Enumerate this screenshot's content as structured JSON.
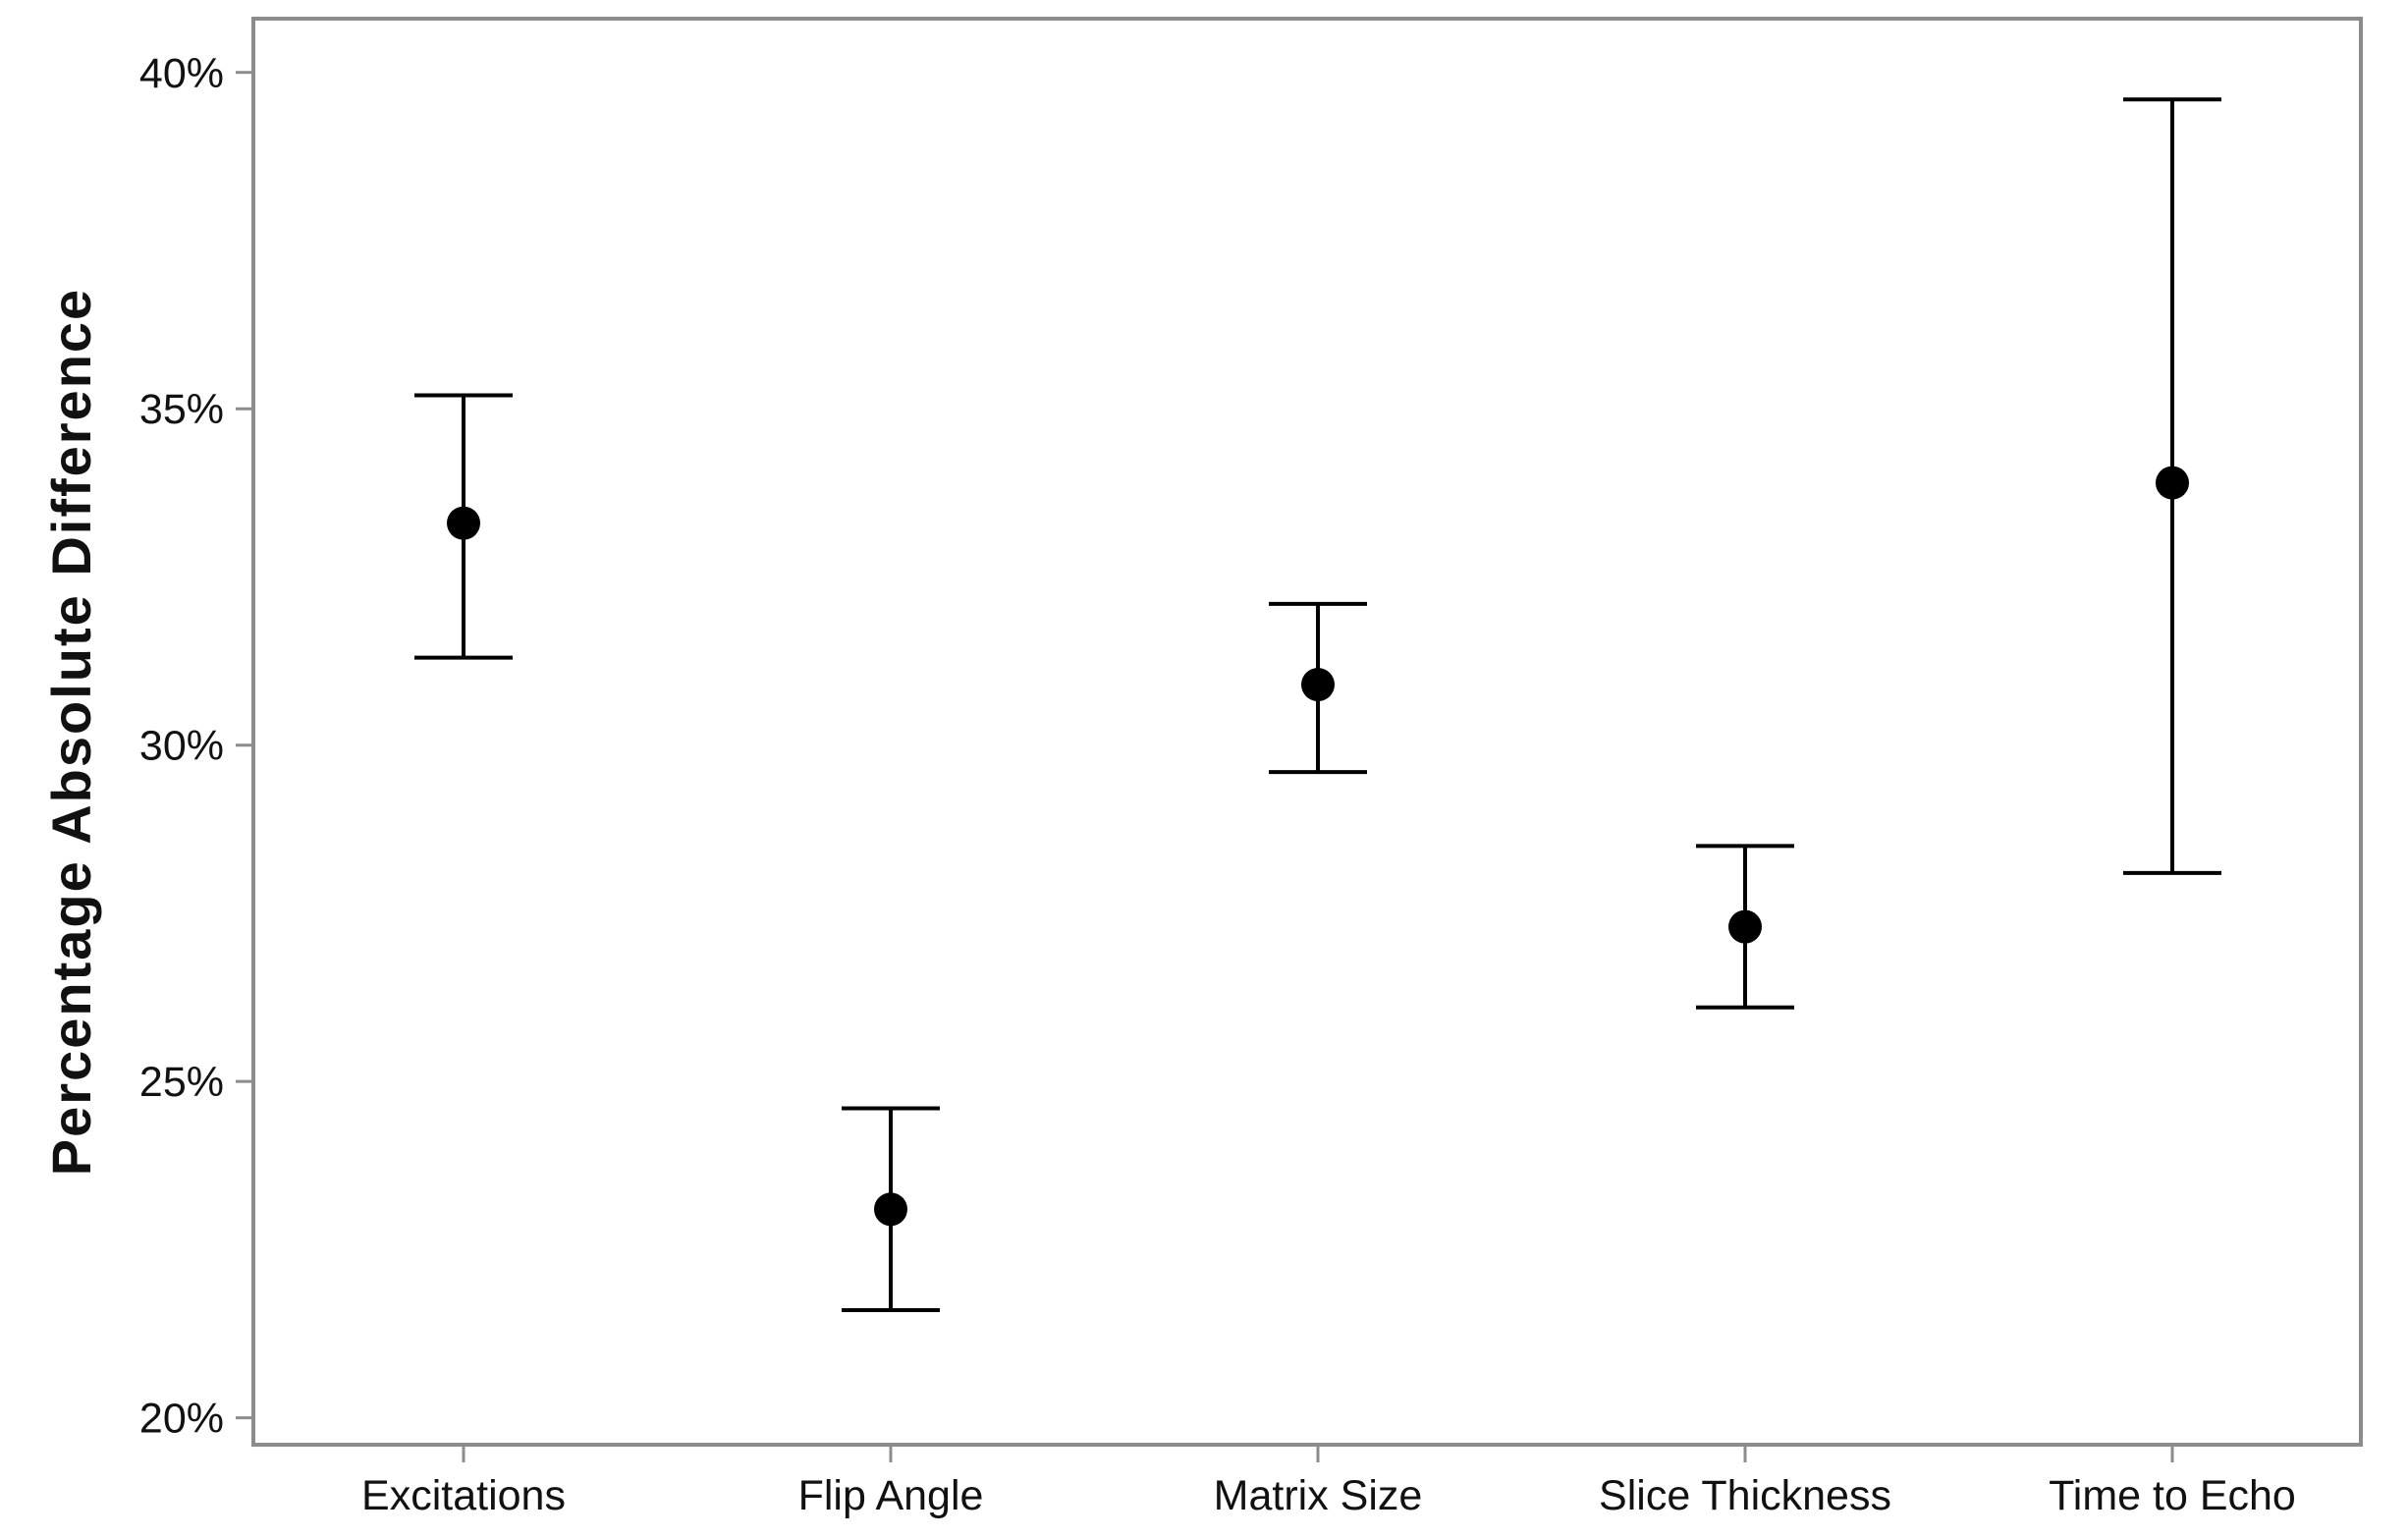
{
  "chart_data": {
    "type": "scatter",
    "subtype": "point-with-error-bars",
    "title": "",
    "xlabel": "",
    "ylabel": "Percentage Absolute Difference",
    "ylim": [
      19.6,
      40.8
    ],
    "y_ticks": [
      {
        "value": 20,
        "label": "20%"
      },
      {
        "value": 25,
        "label": "25%"
      },
      {
        "value": 30,
        "label": "30%"
      },
      {
        "value": 35,
        "label": "35%"
      },
      {
        "value": 40,
        "label": "40%"
      }
    ],
    "categories": [
      "Excitations",
      "Flip Angle",
      "Matrix Size",
      "Slice Thickness",
      "Time to Echo"
    ],
    "series": [
      {
        "values": [
          33.3,
          23.1,
          30.9,
          27.3,
          33.9
        ],
        "lower": [
          31.3,
          21.6,
          29.6,
          26.1,
          28.1
        ],
        "upper": [
          35.2,
          24.6,
          32.1,
          28.5,
          39.6
        ]
      }
    ],
    "grid": false,
    "legend": "none",
    "colors": {
      "marker": "#000000",
      "errorbar": "#000000",
      "frame": "#8c8c8c",
      "text": "#111111"
    }
  }
}
